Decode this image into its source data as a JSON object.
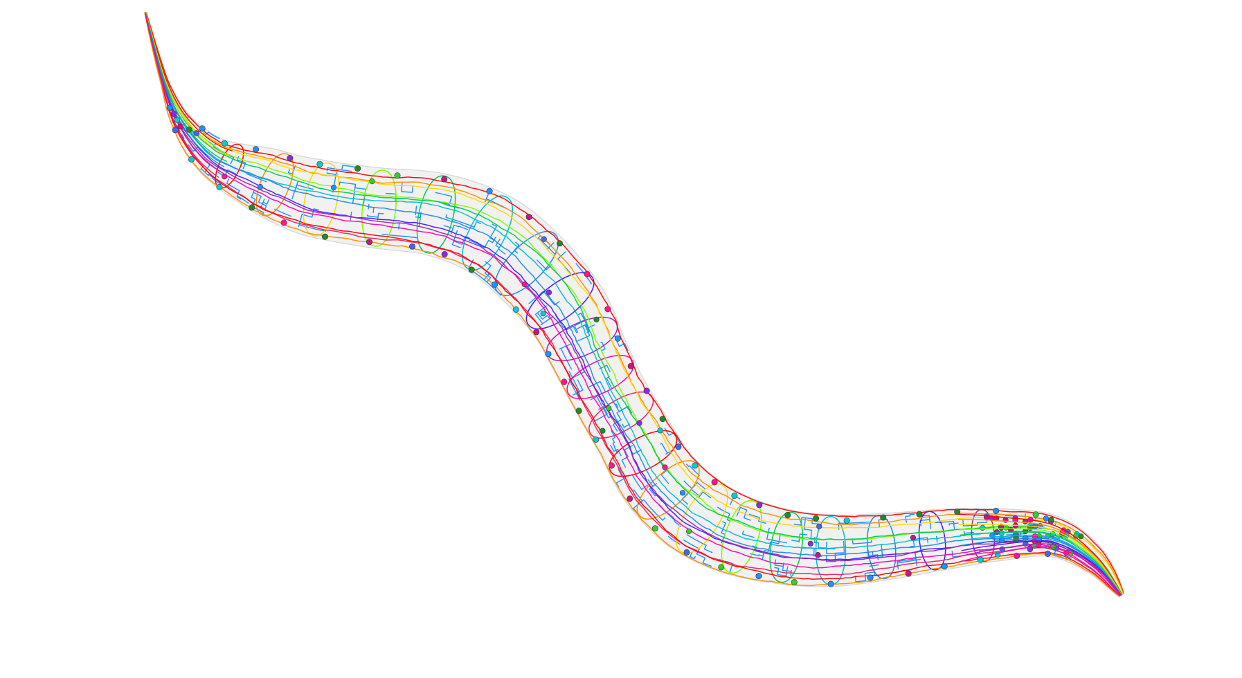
{
  "scene": {
    "subject": "worm-neuron-wireframe",
    "background_color": "#ffffff",
    "body_fill_color": "#e6e6e6",
    "body_outline_color": "#d4d4d4"
  },
  "palette": {
    "muscle_blue": "#1e90ff",
    "neuron_colors": [
      "#ff0000",
      "#ff8c00",
      "#ffd700",
      "#7cfc00",
      "#00c853",
      "#00bcd4",
      "#1e88e5",
      "#3d1cff",
      "#9c27b0",
      "#ff00aa",
      "#e91e63"
    ],
    "soma_colors": [
      "#ff1493",
      "#32cd32",
      "#1e90ff",
      "#8a2be2",
      "#00ced1",
      "#c71585",
      "#228b22",
      "#4169e1"
    ]
  }
}
